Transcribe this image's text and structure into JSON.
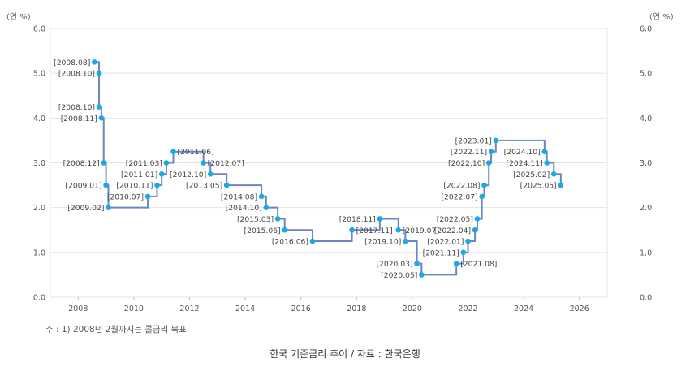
{
  "chart_data": {
    "type": "line",
    "step": true,
    "y_unit_label": "(연 %)",
    "ylim": [
      0,
      6
    ],
    "yticks": [
      "0.0",
      "1.0",
      "2.0",
      "3.0",
      "4.0",
      "5.0",
      "6.0"
    ],
    "xlim": [
      2007,
      2027
    ],
    "xticks": [
      "2008",
      "2010",
      "2012",
      "2014",
      "2016",
      "2018",
      "2020",
      "2022",
      "2024",
      "2026"
    ],
    "grid": true,
    "line_color": "#6b86c3",
    "marker_color": "#1aa9e6",
    "points": [
      {
        "label": "2008.08",
        "x": "2008.08",
        "y": 5.25
      },
      {
        "label": "2008.10",
        "x": "2008.10",
        "y": 5.0
      },
      {
        "label": "2008.10",
        "x": "2008.10",
        "y": 4.25
      },
      {
        "label": "2008.11",
        "x": "2008.11",
        "y": 4.0
      },
      {
        "label": "2008.12",
        "x": "2008.12",
        "y": 3.0
      },
      {
        "label": "2009.01",
        "x": "2009.01",
        "y": 2.5
      },
      {
        "label": "2009.02",
        "x": "2009.02",
        "y": 2.0
      },
      {
        "label": "2010.07",
        "x": "2010.07",
        "y": 2.25
      },
      {
        "label": "2010.11",
        "x": "2010.11",
        "y": 2.5
      },
      {
        "label": "2011.01",
        "x": "2011.01",
        "y": 2.75
      },
      {
        "label": "2011.03",
        "x": "2011.03",
        "y": 3.0
      },
      {
        "label": "2011.06",
        "x": "2011.06",
        "y": 3.25
      },
      {
        "label": "2012.07",
        "x": "2012.07",
        "y": 3.0
      },
      {
        "label": "2012.10",
        "x": "2012.10",
        "y": 2.75
      },
      {
        "label": "2013.05",
        "x": "2013.05",
        "y": 2.5
      },
      {
        "label": "2014.08",
        "x": "2014.08",
        "y": 2.25
      },
      {
        "label": "2014.10",
        "x": "2014.10",
        "y": 2.0
      },
      {
        "label": "2015.03",
        "x": "2015.03",
        "y": 1.75
      },
      {
        "label": "2015.06",
        "x": "2015.06",
        "y": 1.5
      },
      {
        "label": "2016.06",
        "x": "2016.06",
        "y": 1.25
      },
      {
        "label": "2017.11",
        "x": "2017.11",
        "y": 1.5
      },
      {
        "label": "2018.11",
        "x": "2018.11",
        "y": 1.75
      },
      {
        "label": "2019.07",
        "x": "2019.07",
        "y": 1.5
      },
      {
        "label": "2019.10",
        "x": "2019.10",
        "y": 1.25
      },
      {
        "label": "2020.03",
        "x": "2020.03",
        "y": 0.75
      },
      {
        "label": "2020.05",
        "x": "2020.05",
        "y": 0.5
      },
      {
        "label": "2021.08",
        "x": "2021.08",
        "y": 0.75
      },
      {
        "label": "2021.11",
        "x": "2021.11",
        "y": 1.0
      },
      {
        "label": "2022.01",
        "x": "2022.01",
        "y": 1.25
      },
      {
        "label": "2022.04",
        "x": "2022.04",
        "y": 1.5
      },
      {
        "label": "2022.05",
        "x": "2022.05",
        "y": 1.75
      },
      {
        "label": "2022.07",
        "x": "2022.07",
        "y": 2.25
      },
      {
        "label": "2022.08",
        "x": "2022.08",
        "y": 2.5
      },
      {
        "label": "2022.10",
        "x": "2022.10",
        "y": 3.0
      },
      {
        "label": "2022.11",
        "x": "2022.11",
        "y": 3.25
      },
      {
        "label": "2023.01",
        "x": "2023.01",
        "y": 3.5
      },
      {
        "label": "2024.10",
        "x": "2024.10",
        "y": 3.25
      },
      {
        "label": "2024.11",
        "x": "2024.11",
        "y": 3.0
      },
      {
        "label": "2025.02",
        "x": "2025.02",
        "y": 2.75
      },
      {
        "label": "2025.05",
        "x": "2025.05",
        "y": 2.5
      }
    ]
  },
  "note": "주 : 1) 2008년 2월까지는 콜금리 목표",
  "caption": "한국 기준금리 추이 / 자료 : 한국은행"
}
